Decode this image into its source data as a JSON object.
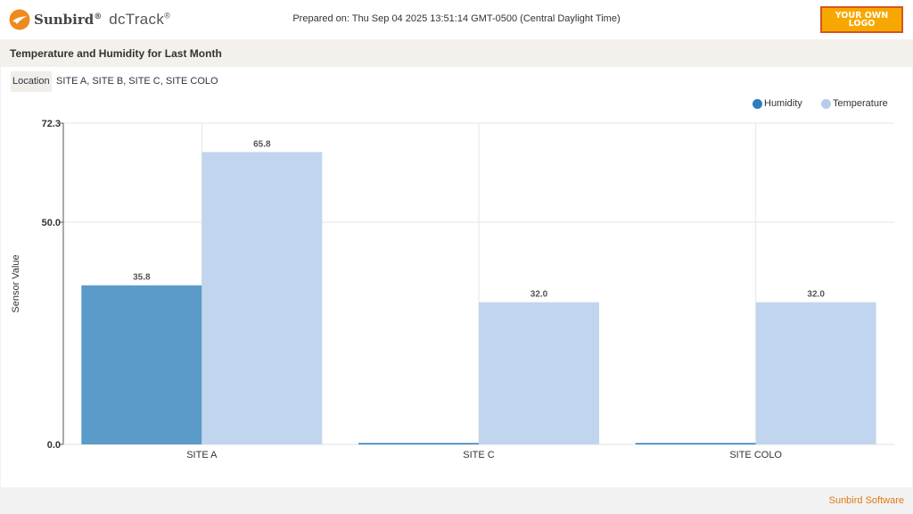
{
  "header": {
    "brand": "Sunbird",
    "product": "dcTrack",
    "reg_mark": "®",
    "prepared": "Prepared on: Thu Sep 04 2025 13:51:14 GMT-0500 (Central Daylight Time)",
    "logo_line1": "YOUR OWN",
    "logo_line2": "LOGO"
  },
  "report": {
    "title": "Temperature and Humidity for Last Month",
    "location_label": "Location",
    "location_value": "SITE A, SITE B, SITE C, SITE COLO"
  },
  "chart_data": {
    "type": "bar",
    "categories": [
      "SITE A",
      "SITE C",
      "SITE COLO"
    ],
    "series": [
      {
        "name": "Humidity",
        "color": "#5a9bc9",
        "legend_color": "#2f7dbd",
        "values": [
          35.8,
          0,
          0
        ]
      },
      {
        "name": "Temperature",
        "color": "#c1d6ee",
        "legend_color": "#b6cde9",
        "values": [
          65.8,
          32.0,
          32.0
        ]
      }
    ],
    "ylabel": "Sensor Value",
    "xlabel": "",
    "yticks": [
      0.0,
      50.0,
      72.3
    ],
    "ylim": [
      0,
      72.3
    ],
    "grid": true,
    "legend_position": "top-right"
  },
  "footer": {
    "text": "Sunbird Software"
  }
}
